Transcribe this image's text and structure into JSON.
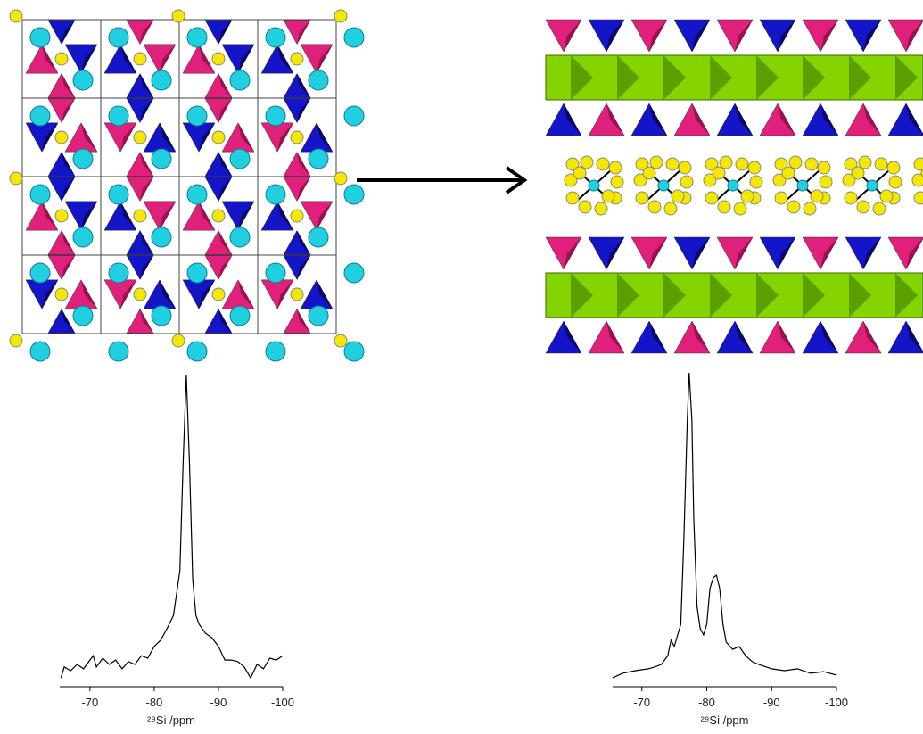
{
  "chart_data": [
    {
      "type": "line",
      "x_label": "²⁹Si /ppm",
      "color": "#000000",
      "x": [
        -65.5,
        -66,
        -67,
        -68,
        -69,
        -70,
        -70.5,
        -71,
        -72,
        -73,
        -74,
        -75,
        -76,
        -77,
        -78,
        -79,
        -80,
        -81,
        -82,
        -83,
        -84,
        -84.5,
        -85,
        -85.5,
        -86,
        -86.5,
        -87,
        -88,
        -89,
        -90,
        -91,
        -92,
        -93,
        -94,
        -95,
        -96,
        -97,
        -98,
        -99,
        -100
      ],
      "values": [
        2.8,
        6.3,
        5.1,
        7.1,
        5.7,
        8.5,
        9.9,
        6.3,
        9.1,
        7.1,
        8.5,
        5.7,
        8.0,
        7.1,
        9.9,
        9.1,
        12.8,
        14.8,
        18.5,
        22.7,
        36.9,
        71.0,
        99.4,
        71.0,
        34.1,
        22.7,
        19.9,
        17.0,
        15.6,
        12.8,
        8.5,
        8.5,
        8.0,
        6.3,
        2.8,
        7.1,
        5.7,
        9.1,
        8.5,
        9.9
      ],
      "xlim": [
        -65.3,
        -100
      ],
      "xticks": [
        -70,
        -80,
        -90,
        -100
      ],
      "ylim": [
        0,
        100
      ]
    },
    {
      "type": "line",
      "x_label": "²⁹Si /ppm",
      "color": "#000000",
      "x": [
        -65.5,
        -67,
        -69,
        -71,
        -72,
        -73,
        -74,
        -74.5,
        -75,
        -76,
        -76.5,
        -77,
        -77.3,
        -77.7,
        -78,
        -78.5,
        -79,
        -79.5,
        -80,
        -80.5,
        -81,
        -81.5,
        -82,
        -82.5,
        -83,
        -84,
        -85,
        -86,
        -87,
        -88,
        -90,
        -92,
        -94,
        -96,
        -98,
        -100
      ],
      "values": [
        2.8,
        4.3,
        5.1,
        5.7,
        6.3,
        7.1,
        9.9,
        14.8,
        12.8,
        19.9,
        48.3,
        85.2,
        100,
        85.2,
        54.0,
        25.6,
        18.5,
        16.5,
        19.9,
        31.3,
        34.7,
        35.5,
        31.3,
        19.9,
        14.2,
        11.9,
        12.8,
        9.9,
        8.0,
        7.1,
        5.7,
        5.1,
        5.7,
        4.3,
        4.8,
        3.7
      ],
      "xlim": [
        -65.5,
        -100
      ],
      "xticks": [
        -70,
        -80,
        -90,
        -100
      ],
      "ylim": [
        0,
        100
      ]
    }
  ]
}
